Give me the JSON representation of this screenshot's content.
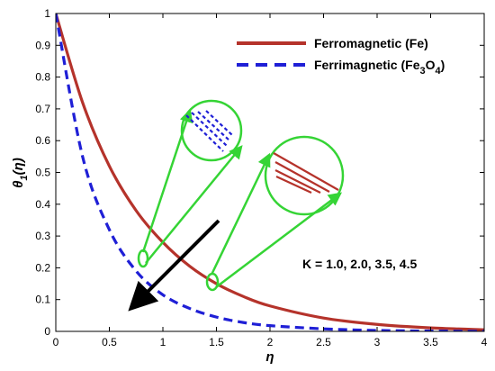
{
  "chart_data": {
    "type": "line",
    "xlabel": "η",
    "ylabel": "θ",
    "ylabel_sub": "1",
    "ylabel_arg": "(η)",
    "xlim": [
      0,
      4
    ],
    "ylim": [
      0,
      1
    ],
    "x_ticks": [
      "0",
      "0.5",
      "1",
      "1.5",
      "2",
      "2.5",
      "3",
      "3.5",
      "4"
    ],
    "y_ticks": [
      "0",
      "0.1",
      "0.2",
      "0.3",
      "0.4",
      "0.5",
      "0.6",
      "0.7",
      "0.8",
      "0.9",
      "1"
    ],
    "grid": false,
    "legend_position": "top-right",
    "series": [
      {
        "name": "Ferromagnetic (Fe)",
        "legend_label": {
          "main": "Ferromagnetic (Fe)",
          "sub1": "",
          "mid": "",
          "sub2": "",
          "end": ""
        },
        "color": "#b5332b",
        "style": "solid",
        "x": [
          0,
          0.25,
          0.5,
          0.75,
          1.0,
          1.25,
          1.5,
          1.75,
          2.0,
          2.5,
          3.0,
          3.5,
          4.0
        ],
        "values": [
          1.0,
          0.72,
          0.52,
          0.38,
          0.28,
          0.205,
          0.15,
          0.11,
          0.08,
          0.042,
          0.022,
          0.011,
          0.005
        ]
      },
      {
        "name": "Ferrimagnetic (Fe3O4)",
        "legend_label": {
          "main": "Ferrimagnetic (Fe",
          "sub1": "3",
          "mid": "O",
          "sub2": "4",
          "end": ")"
        },
        "color": "#1f1fd6",
        "style": "dashed",
        "x": [
          0,
          0.25,
          0.5,
          0.75,
          1.0,
          1.25,
          1.5,
          1.75,
          2.0,
          2.5,
          3.0,
          3.5,
          4.0
        ],
        "values": [
          1.0,
          0.55,
          0.32,
          0.19,
          0.115,
          0.072,
          0.045,
          0.028,
          0.018,
          0.008,
          0.003,
          0.001,
          0.0
        ]
      }
    ],
    "annotations": [
      {
        "text": "K = 1.0, 2.0, 3.5, 4.5"
      }
    ]
  },
  "colors": {
    "zoom_highlight": "#35d435",
    "trend_arrow": "#000000"
  }
}
